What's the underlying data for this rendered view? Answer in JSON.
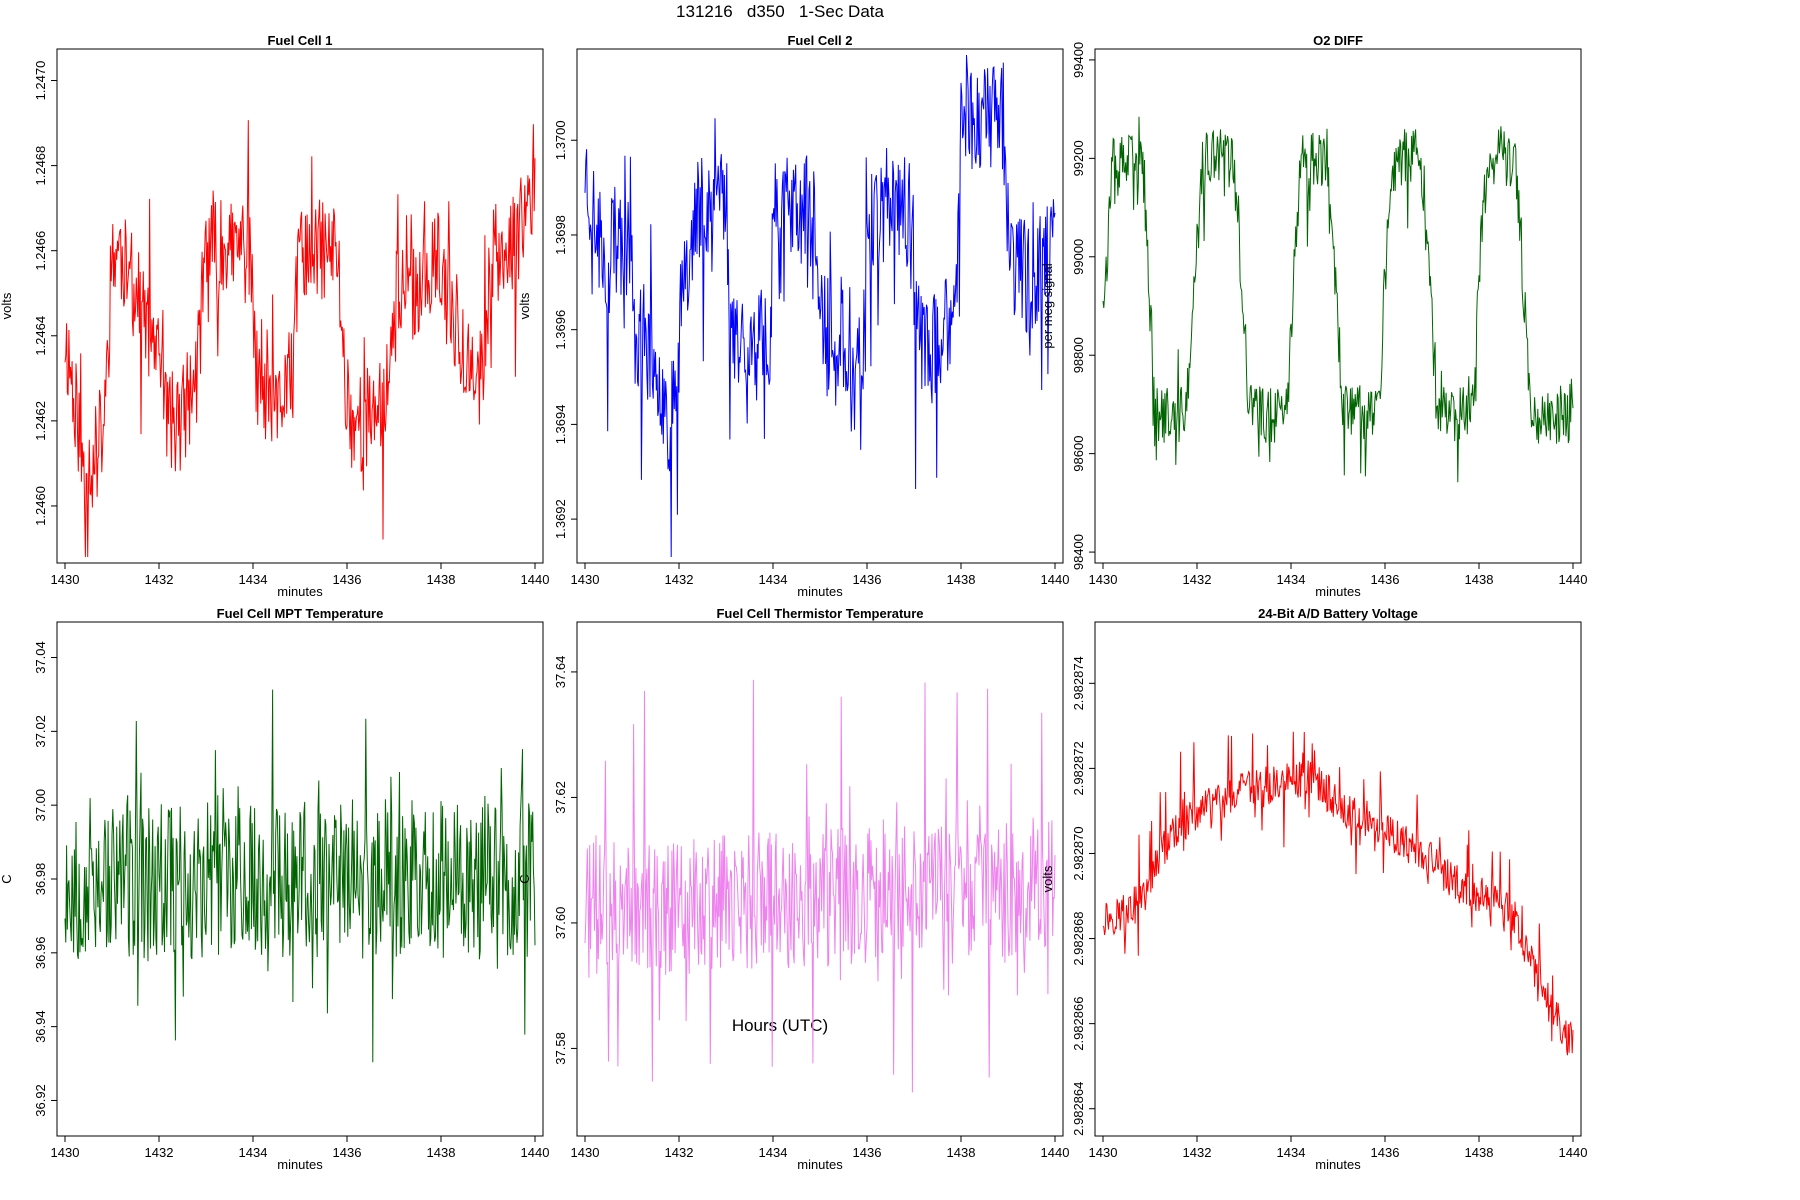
{
  "title": "131216   d350   1-Sec Data",
  "global_xlabel": "Hours (UTC)",
  "chart_data": [
    {
      "type": "line",
      "title": "Fuel Cell 1",
      "color": "#ff0000",
      "xlabel": "minutes",
      "ylabel": "volts",
      "xlim": [
        1430,
        1440
      ],
      "ylim": [
        1.24588,
        1.24706
      ],
      "xticks": [
        "1430",
        "1432",
        "1434",
        "1436",
        "1438",
        "1440"
      ],
      "yticks": [
        "1.2460",
        "1.2462",
        "1.2464",
        "1.2466",
        "1.2468",
        "1.2470"
      ],
      "ytick_values": [
        1.246,
        1.2462,
        1.2464,
        1.2466,
        1.2468,
        1.247
      ],
      "profile_x": [
        1430.0,
        1430.15,
        1430.4,
        1430.6,
        1430.85,
        1431.0,
        1431.15,
        1431.5,
        1431.85,
        1432.05,
        1432.2,
        1432.45,
        1432.8,
        1433.0,
        1433.3,
        1433.6,
        1433.95,
        1434.05,
        1434.4,
        1434.8,
        1435.0,
        1435.3,
        1435.8,
        1435.95,
        1436.1,
        1436.5,
        1436.9,
        1437.05,
        1437.5,
        1437.9,
        1438.05,
        1438.4,
        1438.75,
        1438.85,
        1439.1,
        1439.5,
        1439.85,
        1440.0
      ],
      "profile_y": [
        1.2464,
        1.2463,
        1.2461,
        1.2461,
        1.2462,
        1.2466,
        1.2466,
        1.2465,
        1.2464,
        1.2463,
        1.2462,
        1.2462,
        1.2463,
        1.2466,
        1.2466,
        1.2466,
        1.2466,
        1.2463,
        1.2462,
        1.2463,
        1.2466,
        1.2466,
        1.2466,
        1.2463,
        1.2462,
        1.2462,
        1.2463,
        1.2465,
        1.2465,
        1.2466,
        1.2465,
        1.2464,
        1.2463,
        1.2463,
        1.2466,
        1.2466,
        1.2467,
        1.2468
      ],
      "noise": 0.00012,
      "spike_up": 0.0002,
      "spike_down": 0.00028,
      "seed": 11
    },
    {
      "type": "line",
      "title": "Fuel Cell 2",
      "color": "#0000ff",
      "xlabel": "minutes",
      "ylabel": "volts",
      "xlim": [
        1430,
        1440
      ],
      "ylim": [
        1.36912,
        1.37018
      ],
      "xticks": [
        "1430",
        "1432",
        "1434",
        "1436",
        "1438",
        "1440"
      ],
      "yticks": [
        "1.3692",
        "1.3694",
        "1.3696",
        "1.3698",
        "1.3700"
      ],
      "ytick_values": [
        1.3692,
        1.3694,
        1.3696,
        1.3698,
        1.37
      ],
      "profile_x": [
        1430.0,
        1430.25,
        1430.5,
        1430.95,
        1431.05,
        1431.5,
        1431.8,
        1431.95,
        1432.05,
        1432.4,
        1432.8,
        1433.0,
        1433.1,
        1433.6,
        1433.95,
        1434.0,
        1434.3,
        1434.9,
        1435.05,
        1435.6,
        1435.95,
        1436.0,
        1436.3,
        1436.9,
        1437.05,
        1437.5,
        1437.9,
        1438.0,
        1438.4,
        1438.9,
        1439.05,
        1439.5,
        1440.0
      ],
      "profile_y": [
        1.36995,
        1.3698,
        1.36975,
        1.3698,
        1.3696,
        1.36955,
        1.3694,
        1.36945,
        1.3697,
        1.36985,
        1.3699,
        1.3699,
        1.3696,
        1.36955,
        1.3696,
        1.36985,
        1.36985,
        1.36985,
        1.3696,
        1.36955,
        1.3696,
        1.36985,
        1.36985,
        1.36985,
        1.3696,
        1.36955,
        1.36965,
        1.37005,
        1.37005,
        1.37005,
        1.36975,
        1.3697,
        1.3698
      ],
      "noise": 0.00012,
      "spike_up": 0.00016,
      "spike_down": 0.0003,
      "seed": 23
    },
    {
      "type": "line",
      "title": "O2 DIFF",
      "color": "#006400",
      "xlabel": "minutes",
      "ylabel": "per meg signal",
      "xlim": [
        1430,
        1440
      ],
      "ylim": [
        98390,
        99410
      ],
      "xticks": [
        "1430",
        "1432",
        "1434",
        "1436",
        "1438",
        "1440"
      ],
      "yticks": [
        "98400",
        "98600",
        "98800",
        "99000",
        "99200",
        "99400"
      ],
      "ytick_values": [
        98400,
        98600,
        98800,
        99000,
        99200,
        99400
      ],
      "profile_x": [
        1430.0,
        1430.05,
        1430.2,
        1430.8,
        1430.95,
        1431.1,
        1431.2,
        1431.7,
        1431.85,
        1432.0,
        1432.2,
        1432.75,
        1432.9,
        1433.1,
        1433.25,
        1433.8,
        1433.95,
        1434.1,
        1434.25,
        1434.7,
        1434.9,
        1435.1,
        1435.25,
        1435.75,
        1435.9,
        1436.05,
        1436.25,
        1436.75,
        1436.9,
        1437.1,
        1437.25,
        1437.75,
        1437.9,
        1438.05,
        1438.2,
        1438.75,
        1438.9,
        1439.1,
        1439.25,
        1439.75,
        1439.9,
        1440.0
      ],
      "profile_y": [
        98940,
        98950,
        99180,
        99200,
        99000,
        98700,
        98680,
        98680,
        98760,
        99050,
        99200,
        99200,
        99020,
        98700,
        98680,
        98680,
        98760,
        99060,
        99200,
        99200,
        99020,
        98700,
        98680,
        98680,
        98760,
        99060,
        99200,
        99200,
        99020,
        98700,
        98680,
        98680,
        98760,
        99060,
        99200,
        99200,
        99020,
        98700,
        98680,
        98680,
        98680,
        98700
      ],
      "noise": 60,
      "spike_up": 80,
      "spike_down": 130,
      "seed": 37
    },
    {
      "type": "line",
      "title": "Fuel Cell MPT Temperature",
      "color": "#006400",
      "xlabel": "minutes",
      "ylabel": "C",
      "xlim": [
        1430,
        1440
      ],
      "ylim": [
        36.912,
        37.048
      ],
      "xticks": [
        "1430",
        "1432",
        "1434",
        "1436",
        "1438",
        "1440"
      ],
      "yticks": [
        "36.92",
        "36.94",
        "36.96",
        "36.98",
        "37.00",
        "37.02",
        "37.04"
      ],
      "ytick_values": [
        36.92,
        36.94,
        36.96,
        36.98,
        37.0,
        37.02,
        37.04
      ],
      "profile_x": [
        1430.0,
        1440.0
      ],
      "profile_y": [
        36.98,
        36.98
      ],
      "noise": 0.022,
      "spike_up": 0.04,
      "spike_down": 0.04,
      "seed": 53
    },
    {
      "type": "line",
      "title": "Fuel Cell Thermistor Temperature",
      "color": "#ee82ee",
      "xlabel": "minutes",
      "ylabel": "C",
      "xlim": [
        1430,
        1440
      ],
      "ylim": [
        37.567,
        37.647
      ],
      "xticks": [
        "1430",
        "1432",
        "1434",
        "1436",
        "1438",
        "1440"
      ],
      "yticks": [
        "37.58",
        "37.60",
        "37.62",
        "37.64"
      ],
      "ytick_values": [
        37.58,
        37.6,
        37.62,
        37.64
      ],
      "profile_x": [
        1430.0,
        1440.0
      ],
      "profile_y": [
        37.602,
        37.606
      ],
      "noise": 0.011,
      "spike_up": 0.03,
      "spike_down": 0.028,
      "seed": 71
    },
    {
      "type": "line",
      "title": "24-Bit A/D Battery Voltage",
      "color": "#ff0000",
      "xlabel": "minutes",
      "ylabel": "volts",
      "xlim": [
        1430,
        1440
      ],
      "ylim": [
        2.9828635,
        2.9828753
      ],
      "xticks": [
        "1430",
        "1432",
        "1434",
        "1436",
        "1438",
        "1440"
      ],
      "yticks": [
        "2.982864",
        "2.982866",
        "2.982868",
        "2.982870",
        "2.982872",
        "2.982874"
      ],
      "ytick_values": [
        2.982864,
        2.982866,
        2.982868,
        2.98287,
        2.982872,
        2.982874
      ],
      "profile_x": [
        1430.0,
        1430.5,
        1430.9,
        1431.1,
        1431.5,
        1432.0,
        1432.5,
        1433.0,
        1433.5,
        1434.0,
        1434.4,
        1434.8,
        1435.2,
        1435.6,
        1436.0,
        1436.5,
        1437.0,
        1437.5,
        1438.0,
        1438.4,
        1438.8,
        1439.2,
        1439.6,
        1440.0
      ],
      "profile_y": [
        2.9828685,
        2.9828686,
        2.982869,
        2.9828698,
        2.9828705,
        2.982871,
        2.9828712,
        2.9828715,
        2.9828716,
        2.9828717,
        2.9828718,
        2.9828714,
        2.982871,
        2.9828708,
        2.9828705,
        2.9828702,
        2.9828698,
        2.9828693,
        2.982869,
        2.9828689,
        2.9828684,
        2.9828672,
        2.9828662,
        2.9828655
      ],
      "noise": 4.5e-07,
      "spike_up": 1.3e-06,
      "spike_down": 1.2e-06,
      "seed": 97
    }
  ]
}
